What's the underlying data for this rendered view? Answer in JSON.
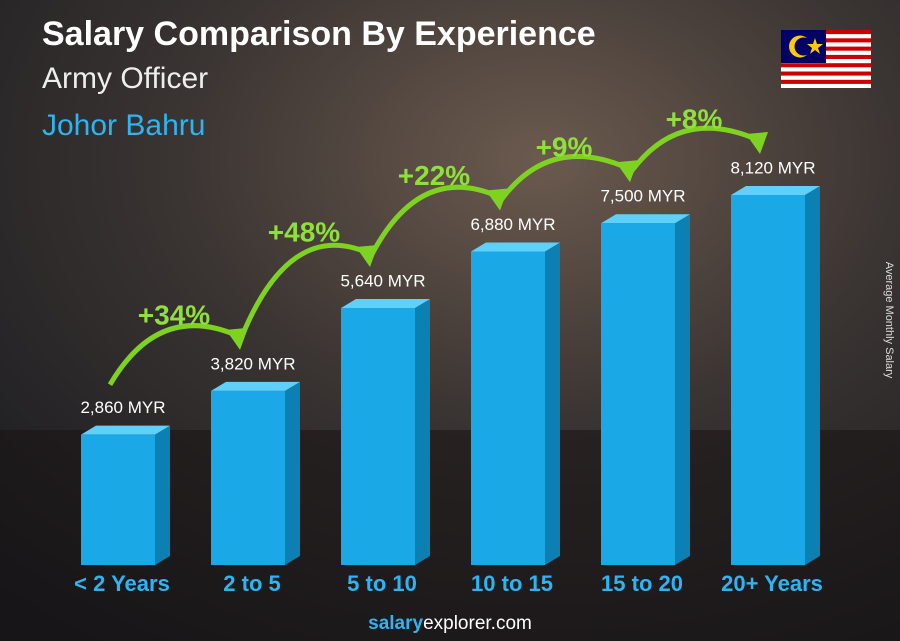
{
  "chart_data": {
    "type": "bar",
    "title": "Salary Comparison By Experience",
    "subtitle": "Army Officer",
    "location": "Johor Bahru",
    "y_axis_label": "Average Monthly Salary",
    "categories": [
      "< 2 Years",
      "2 to 5",
      "5 to 10",
      "10 to 15",
      "15 to 20",
      "20+ Years"
    ],
    "values": [
      2860,
      3820,
      5640,
      6880,
      7500,
      8120
    ],
    "value_labels": [
      "2,860 MYR",
      "3,820 MYR",
      "5,640 MYR",
      "6,880 MYR",
      "7,500 MYR",
      "8,120 MYR"
    ],
    "annotations": [
      "+34%",
      "+48%",
      "+22%",
      "+9%",
      "+8%"
    ],
    "color": "#1aa9e6",
    "footer": {
      "bold": "salary",
      "rest": "explorer.com"
    }
  }
}
